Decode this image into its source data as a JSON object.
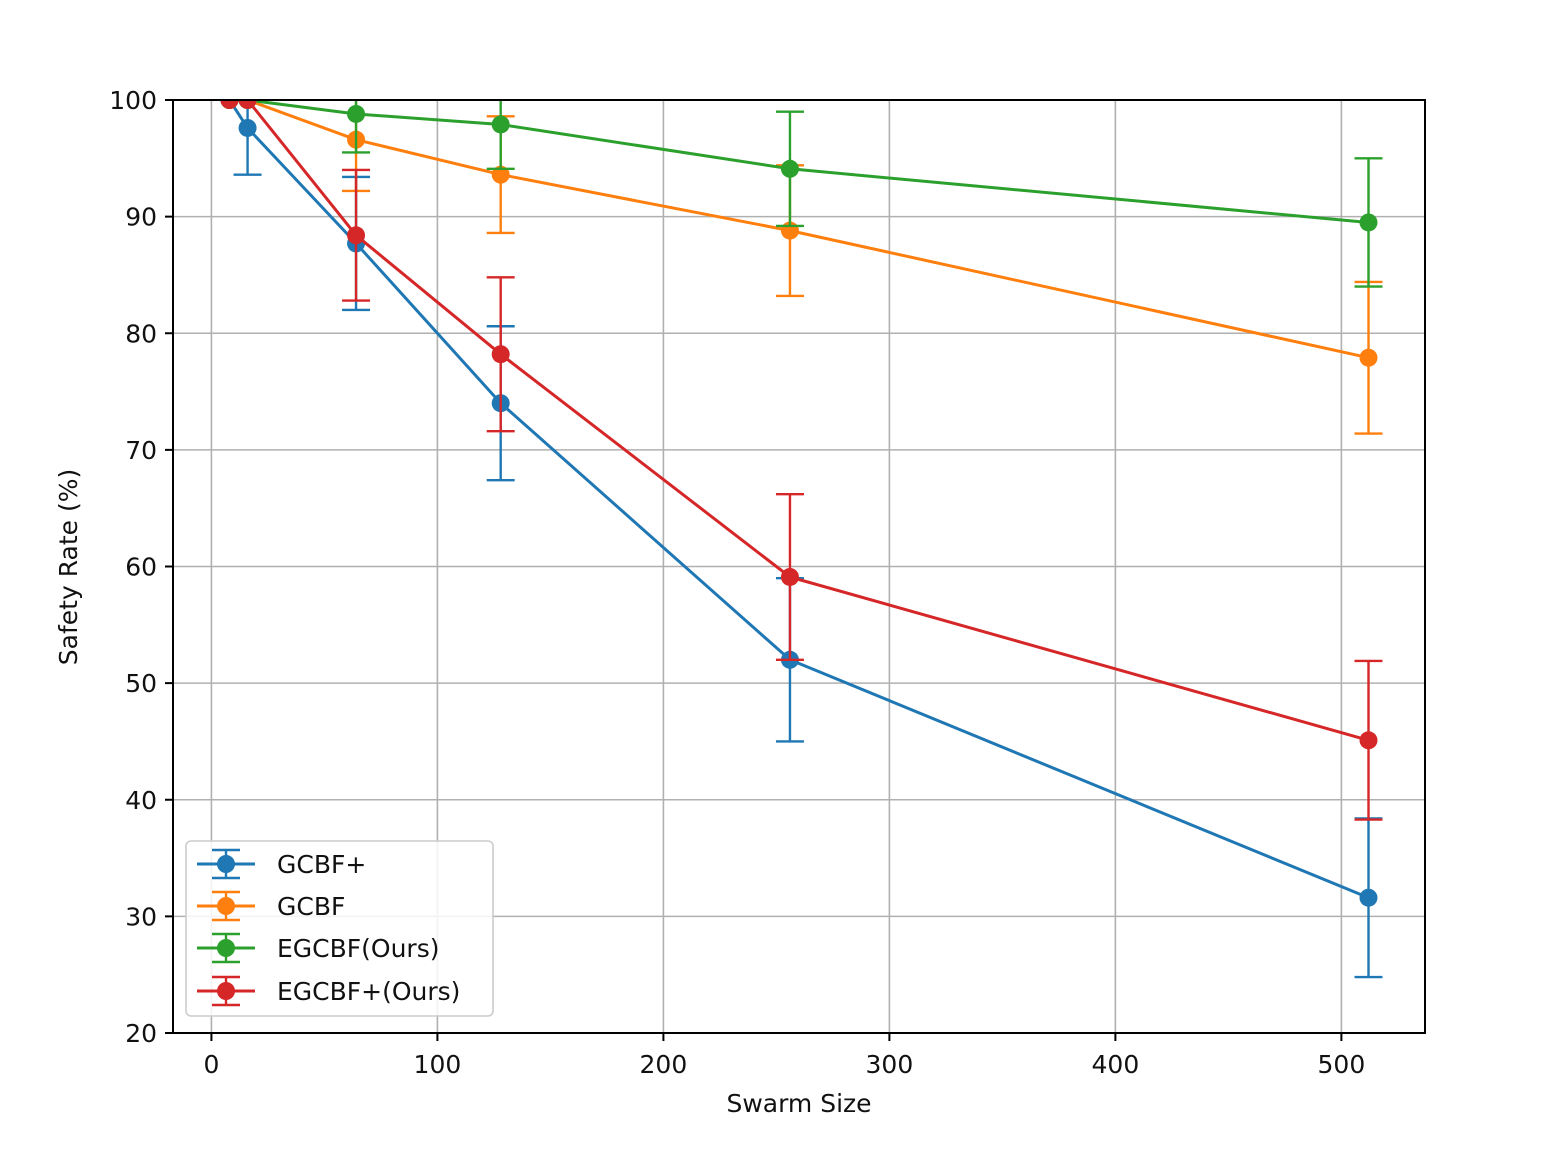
{
  "chart_data": {
    "type": "line",
    "title": "",
    "xlabel": "Swarm Size",
    "ylabel": "Safety Rate (%)",
    "xlim": [
      -17,
      537
    ],
    "ylim": [
      20,
      100
    ],
    "xticks": [
      0,
      100,
      200,
      300,
      400,
      500
    ],
    "yticks": [
      20,
      30,
      40,
      50,
      60,
      70,
      80,
      90,
      100
    ],
    "xtick_labels": [
      "0",
      "100",
      "200",
      "300",
      "400",
      "500"
    ],
    "ytick_labels": [
      "20",
      "30",
      "40",
      "50",
      "60",
      "70",
      "80",
      "90",
      "100"
    ],
    "grid": true,
    "legend_position": "lower-left",
    "series": [
      {
        "name": "GCBF+",
        "color": "#1f77b4",
        "x": [
          8,
          16,
          64,
          128,
          256,
          512
        ],
        "y": [
          100,
          97.6,
          87.7,
          74.0,
          52.0,
          31.6
        ],
        "err": [
          0,
          4.0,
          5.7,
          6.6,
          7.0,
          6.8
        ]
      },
      {
        "name": "GCBF",
        "color": "#ff7f0e",
        "x": [
          8,
          16,
          64,
          128,
          256,
          512
        ],
        "y": [
          100,
          100,
          96.6,
          93.6,
          88.8,
          77.9
        ],
        "err": [
          0,
          0,
          4.4,
          5.0,
          5.6,
          6.5
        ]
      },
      {
        "name": "EGCBF(Ours)",
        "color": "#2ca02c",
        "x": [
          8,
          16,
          64,
          128,
          256,
          512
        ],
        "y": [
          100,
          100,
          98.8,
          97.9,
          94.1,
          89.5
        ],
        "err": [
          0,
          0,
          3.3,
          3.8,
          4.9,
          5.5
        ]
      },
      {
        "name": "EGCBF+(Ours)",
        "color": "#d62728",
        "x": [
          8,
          16,
          64,
          128,
          256,
          512
        ],
        "y": [
          100,
          100,
          88.4,
          78.2,
          59.1,
          45.1
        ],
        "err": [
          0,
          0,
          5.6,
          6.6,
          7.1,
          6.8
        ]
      }
    ]
  }
}
